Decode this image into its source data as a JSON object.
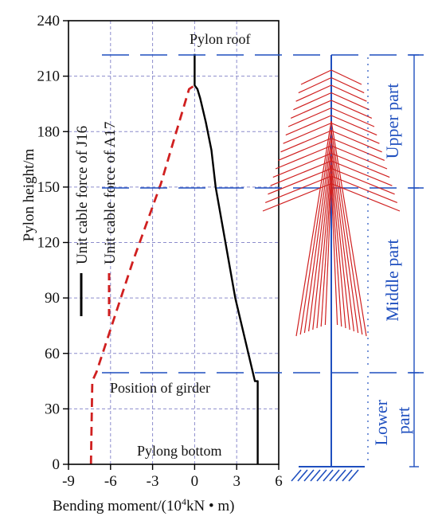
{
  "chart_data": {
    "type": "line",
    "xlabel": "Bending moment/(10",
    "xlabel_sup": "4",
    "xlabel_tail": "kN • m)",
    "ylabel": "Pylon height/m",
    "xlim": [
      -9,
      6
    ],
    "ylim": [
      0,
      240
    ],
    "x_ticks": [
      -9,
      -6,
      -3,
      0,
      3,
      6
    ],
    "x_tick_labels": [
      "-9",
      "-6",
      "-3",
      "0",
      "3",
      "6"
    ],
    "y_ticks": [
      0,
      30,
      60,
      90,
      120,
      150,
      180,
      210,
      240
    ],
    "y_tick_labels": [
      "0",
      "30",
      "60",
      "90",
      "120",
      "150",
      "180",
      "210",
      "240"
    ],
    "grid": true,
    "series": [
      {
        "name": "Unit cable force of J16",
        "color": "#000000",
        "style": "solid",
        "points": [
          [
            4.5,
            0
          ],
          [
            4.5,
            45
          ],
          [
            4.3,
            45
          ],
          [
            2.9,
            90
          ],
          [
            1.5,
            150
          ],
          [
            1.2,
            170
          ],
          [
            0.8,
            185
          ],
          [
            0.4,
            198
          ],
          [
            0.2,
            203
          ],
          [
            0.0,
            205
          ],
          [
            0.0,
            222
          ]
        ]
      },
      {
        "name": "Unit cable force of A17",
        "color": "#d02020",
        "style": "dashed",
        "points": [
          [
            -7.4,
            0
          ],
          [
            -7.3,
            45
          ],
          [
            -7.0,
            50
          ],
          [
            -4.4,
            110
          ],
          [
            -2.4,
            152
          ],
          [
            -1.5,
            175
          ],
          [
            -0.4,
            203
          ],
          [
            0.0,
            205
          ]
        ]
      }
    ],
    "annotations": [
      "Pylon roof",
      "Position of girder",
      "Pylong bottom"
    ],
    "part_labels": [
      "Upper part",
      "Middle part",
      "Lower part"
    ]
  },
  "colors": {
    "accent": "#1f4fbf",
    "cable": "#d02020",
    "grid": "#8c8ccc"
  }
}
